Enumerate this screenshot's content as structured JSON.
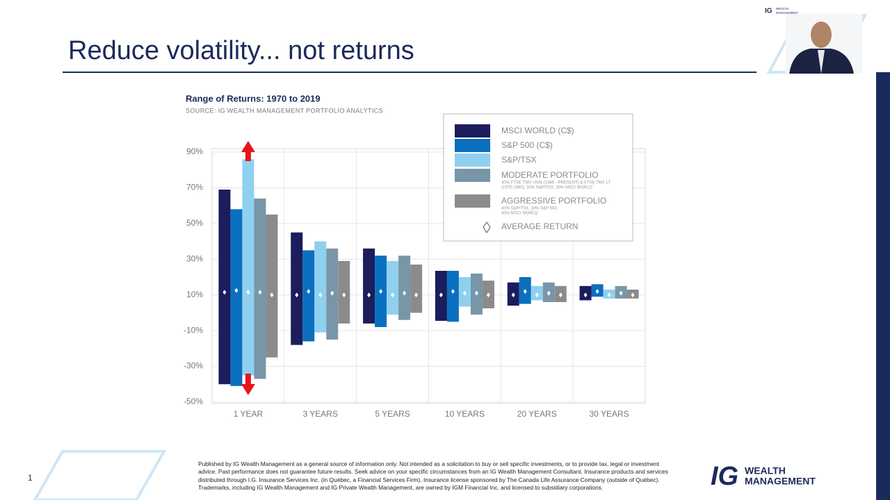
{
  "slide": {
    "title": "Reduce volatility... not returns",
    "page_number": "1",
    "disclaimer": "Published by IG Wealth Management as a general source of information only. Not intended as a solicitation to buy or sell specific investments, or to provide tax, legal or investment advice. Past performance does not guarantee future results. Seek advice on your specific circumstances from an IG Wealth Management Consultant. Insurance products and services distributed through I.G. Insurance Services Inc. (in Québec, a Financial Services Firm). Insurance license sponsored by The Canada Life Assurance Company (outside of Québec). Trademarks, including IG Wealth Management and IG Private Wealth Management, are owned by IGM Financial Inc. and licensed to subsidiary corporations.",
    "logo": {
      "mark": "IG",
      "line1": "WEALTH",
      "line2": "MANAGEMENT"
    }
  },
  "chart_data": {
    "type": "range_bar",
    "title": "Range of Returns: 1970 to 2019",
    "subtitle": "SOURCE: IG WEALTH MANAGEMENT PORTFOLIO ANALYTICS",
    "categories": [
      "1 YEAR",
      "3 YEARS",
      "5 YEARS",
      "10 YEARS",
      "20 YEARS",
      "30 YEARS"
    ],
    "ylim": [
      -50,
      90
    ],
    "yticks": [
      {
        "value": -50,
        "label": "-50%"
      },
      {
        "value": -30,
        "label": "-30%"
      },
      {
        "value": -10,
        "label": "-10%"
      },
      {
        "value": 10,
        "label": "10%"
      },
      {
        "value": 30,
        "label": "30%"
      },
      {
        "value": 50,
        "label": "50%"
      },
      {
        "value": 70,
        "label": "70%"
      },
      {
        "value": 90,
        "label": "90%"
      }
    ],
    "grid": true,
    "average_label": "AVERAGE RETURN",
    "series": [
      {
        "name": "MSCI WORLD (C$)",
        "color": "#1b1d5c",
        "high": [
          69,
          45,
          36,
          23.5,
          17,
          15
        ],
        "low": [
          -40,
          -18,
          -6,
          -4.5,
          4,
          7
        ],
        "average": [
          11.5,
          10,
          10,
          10,
          10,
          10
        ]
      },
      {
        "name": "S&P 500 (C$)",
        "color": "#0b6fbf",
        "high": [
          58,
          35,
          32,
          23.5,
          20,
          16
        ],
        "low": [
          -41,
          -16,
          -8,
          -5,
          5,
          9
        ],
        "average": [
          12.5,
          12,
          12,
          12,
          12,
          12
        ]
      },
      {
        "name": "S&P/TSX",
        "color": "#8fd0f0",
        "high": [
          86,
          40,
          29,
          20,
          15,
          13
        ],
        "low": [
          -35,
          -11,
          -1,
          3.5,
          7,
          8
        ],
        "average": [
          11.5,
          10,
          10,
          11,
          10,
          10
        ]
      },
      {
        "name": "MODERATE PORTFOLIO",
        "note": [
          "40% FTSE TMX UNIV (1980 - PRESENT) & FTSE TMX LT",
          "(1970-1980), 30% S&P/TSX, 30% MSCI WORLD"
        ],
        "color": "#7896a8",
        "high": [
          64,
          36,
          32,
          22,
          17,
          15
        ],
        "low": [
          -37,
          -15,
          -4,
          -1,
          6,
          8
        ],
        "average": [
          11.5,
          11,
          11,
          11,
          11,
          11
        ]
      },
      {
        "name": "AGGRESSIVE PORTFOLIO",
        "note": [
          "40% S&P/TSX, 30% S&P 500,",
          "30% MSCI WORLD"
        ],
        "color": "#8b8b8d",
        "high": [
          55,
          29,
          27,
          18,
          15,
          13
        ],
        "low": [
          -25,
          -6,
          0,
          2.5,
          6,
          8
        ],
        "average": [
          10,
          10,
          10,
          10,
          10,
          10
        ]
      }
    ]
  }
}
